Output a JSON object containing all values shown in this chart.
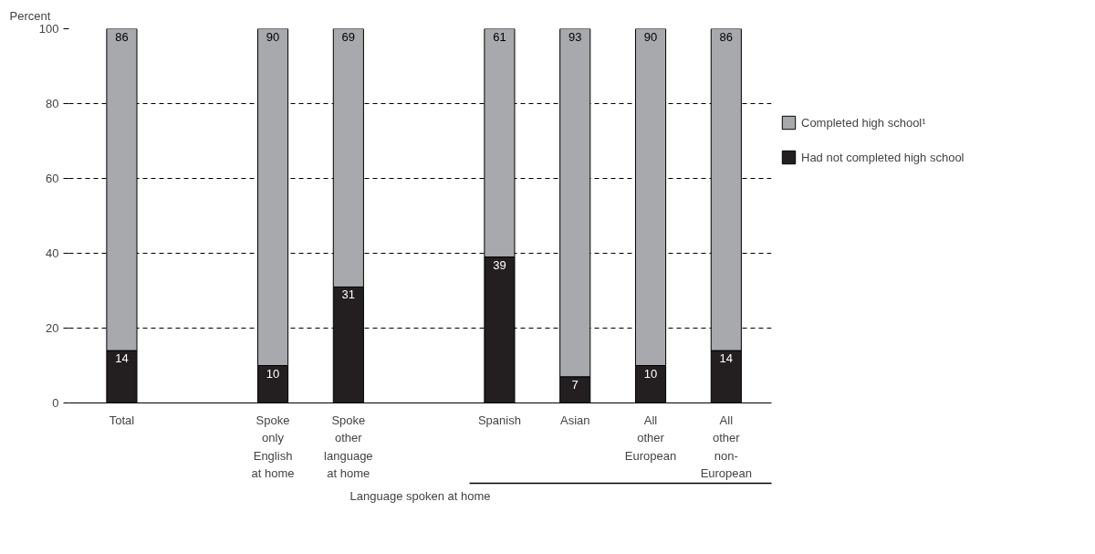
{
  "chart_data": {
    "type": "bar",
    "stacked": true,
    "ylabel": "Percent",
    "categories": [
      "Total",
      null,
      "Spoke\nonly\nEnglish\nat home",
      "Spoke\nother\nlanguage\nat home",
      null,
      "Spanish",
      "Asian",
      "All\nother\nEuropean",
      "All\nother\nnon-\nEuropean"
    ],
    "series": [
      {
        "name": "Had not completed high school",
        "color": "#231f20",
        "values": [
          14,
          null,
          10,
          31,
          null,
          39,
          7,
          10,
          14
        ]
      },
      {
        "name": "Completed high school¹",
        "color": "#a7a9ac",
        "values": [
          86,
          null,
          90,
          69,
          null,
          61,
          93,
          90,
          86
        ]
      }
    ],
    "ylim": [
      0,
      100
    ],
    "yticks": [
      0,
      20,
      40,
      60,
      80,
      100
    ],
    "grid": "y",
    "legend": "top right",
    "data_labels": true,
    "annotations": [
      "Language spoken at home"
    ]
  }
}
